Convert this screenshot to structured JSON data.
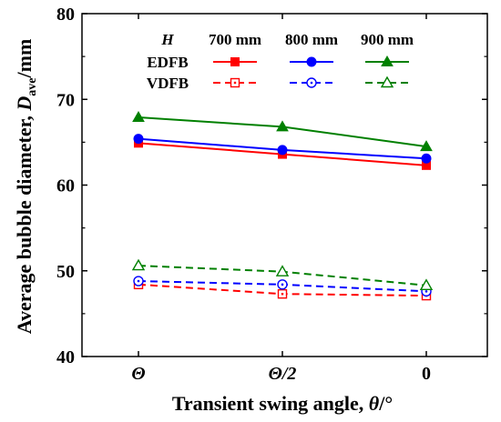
{
  "chart_data": {
    "type": "line",
    "xlabel": "Transient swing angle, θ/°",
    "xlabel_parts": {
      "main": "Transient swing angle, ",
      "var": "θ",
      "unit": "/°"
    },
    "ylabel": "Average bubble diameter, Dave/mm",
    "ylabel_parts": {
      "main": "Average bubble diameter, ",
      "var": "D",
      "sub": "ave",
      "unit": "/mm"
    },
    "categories": [
      "Θ",
      "Θ/2",
      "0"
    ],
    "ylim": [
      40,
      80
    ],
    "yticks": [
      "40",
      "50",
      "60",
      "70",
      "80"
    ],
    "grid": false,
    "legend": {
      "placement": "top",
      "header": "H",
      "columns": [
        "700 mm",
        "800 mm",
        "900 mm"
      ],
      "rows": [
        "EDFB",
        "VDFB"
      ]
    },
    "series": [
      {
        "name": "EDFB 700 mm",
        "values": [
          64.9,
          63.6,
          62.3
        ],
        "color": "#ff0000",
        "dash": "solid",
        "marker": "square",
        "filled": true
      },
      {
        "name": "EDFB 800 mm",
        "values": [
          65.4,
          64.1,
          63.1
        ],
        "color": "#0000ff",
        "dash": "solid",
        "marker": "circle",
        "filled": true
      },
      {
        "name": "EDFB 900 mm",
        "values": [
          67.9,
          66.8,
          64.5
        ],
        "color": "#008000",
        "dash": "solid",
        "marker": "triangle",
        "filled": true
      },
      {
        "name": "VDFB 700 mm",
        "values": [
          48.4,
          47.3,
          47.1
        ],
        "color": "#ff0000",
        "dash": "dashed",
        "marker": "square",
        "filled": false
      },
      {
        "name": "VDFB 800 mm",
        "values": [
          48.8,
          48.4,
          47.6
        ],
        "color": "#0000ff",
        "dash": "dashed",
        "marker": "circle",
        "filled": false
      },
      {
        "name": "VDFB 900 mm",
        "values": [
          50.6,
          49.9,
          48.3
        ],
        "color": "#008000",
        "dash": "dashed",
        "marker": "triangle",
        "filled": false
      }
    ]
  }
}
